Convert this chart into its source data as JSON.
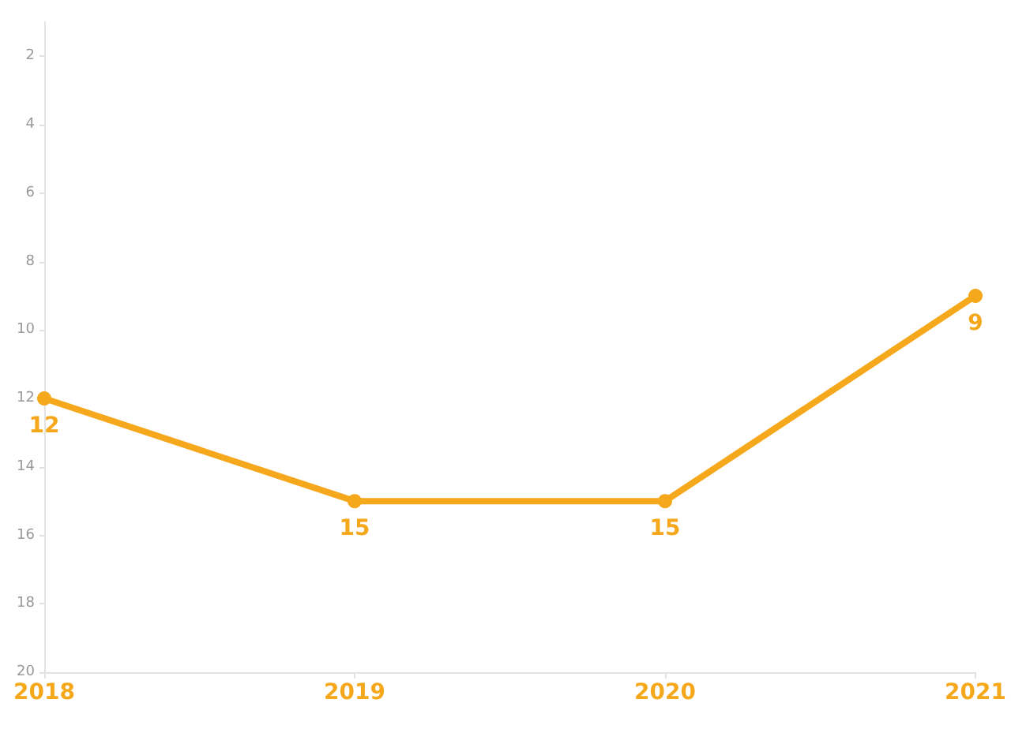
{
  "chart_data": {
    "type": "line",
    "categories": [
      "2018",
      "2019",
      "2020",
      "2021"
    ],
    "series": [
      {
        "color": "#f5a81c",
        "values": [
          12,
          15,
          15,
          9
        ]
      }
    ],
    "ylim": [
      20,
      1
    ],
    "yticks": [
      2,
      4,
      6,
      8,
      10,
      12,
      14,
      16,
      18,
      20
    ],
    "data_labels": true,
    "marker": "circle",
    "line_style": "solid"
  }
}
